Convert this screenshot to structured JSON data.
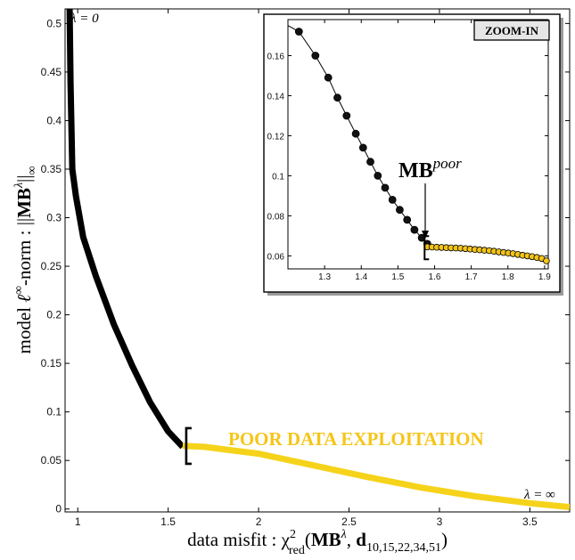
{
  "chart_data": [
    {
      "type": "line",
      "title": "",
      "xlabel": "data misfit : χ²red(MBλ, d10,15,22,34,51)",
      "xlabel_parts": {
        "prefix": "data misfit :  χ",
        "sup": "2",
        "sub": "red",
        "open": "(",
        "mb": "MB",
        "lambda": "λ",
        "sep": ", ",
        "d": "d",
        "dsub": "10,15,22,34,51",
        "close": ")"
      },
      "ylabel": "model ℓ∞-norm : ‖MBλ‖∞",
      "ylabel_parts": {
        "prefix": "model ",
        "ell": "ℓ",
        "inf": "∞",
        "mid": "-norm :  ||",
        "mb": "MB",
        "lambda": "λ",
        "close": "||",
        "sub": "∞"
      },
      "xlim": [
        0.93,
        3.72
      ],
      "ylim": [
        -0.003,
        0.515
      ],
      "xticks": [
        1,
        1.5,
        2,
        2.5,
        3,
        3.5
      ],
      "xtick_labels": [
        "1",
        "1.5",
        "2",
        "2.5",
        "3",
        "3.5"
      ],
      "yticks": [
        0,
        0.05,
        0.1,
        0.15,
        0.2,
        0.25,
        0.3,
        0.35,
        0.4,
        0.45,
        0.5
      ],
      "ytick_labels": [
        "0",
        "0.05",
        "0.1",
        "0.15",
        "0.2",
        "0.25",
        "0.3",
        "0.35",
        "0.4",
        "0.45",
        "0.5"
      ],
      "grid": false,
      "series": [
        {
          "color": "#000000",
          "x": [
            0.955,
            0.96,
            0.97,
            0.99,
            1.03,
            1.1,
            1.2,
            1.3,
            1.4,
            1.5,
            1.58
          ],
          "y": [
            0.515,
            0.44,
            0.35,
            0.322,
            0.28,
            0.24,
            0.19,
            0.148,
            0.11,
            0.08,
            0.064
          ]
        },
        {
          "color": "#f5d31a",
          "x": [
            1.58,
            1.7,
            2.0,
            2.3,
            2.6,
            2.9,
            3.2,
            3.5,
            3.72
          ],
          "y": [
            0.065,
            0.064,
            0.057,
            0.045,
            0.033,
            0.022,
            0.013,
            0.006,
            0.002
          ]
        }
      ],
      "bracket_at": {
        "x": 1.6,
        "y": 0.064
      },
      "annotations": {
        "lambda_zero": "λ = 0",
        "lambda_inf": "λ = ∞",
        "poor": "POOR DATA EXPLOITATION"
      },
      "colors": {
        "good_curve": "#000000",
        "poor_curve": "#f5d31a",
        "poor_text": "#f5c518"
      }
    },
    {
      "type": "scatter",
      "title": "ZOOM-IN",
      "xlim": [
        1.2,
        1.91
      ],
      "ylim": [
        0.0535,
        0.178
      ],
      "xticks": [
        1.3,
        1.4,
        1.5,
        1.6,
        1.7,
        1.8,
        1.9
      ],
      "xtick_labels": [
        "1.3",
        "1.4",
        "1.5",
        "1.6",
        "1.7",
        "1.8",
        "1.9"
      ],
      "yticks": [
        0.06,
        0.08,
        0.1,
        0.12,
        0.14,
        0.16
      ],
      "ytick_labels": [
        "0.06",
        "0.08",
        "0.1",
        "0.12",
        "0.14",
        "0.16"
      ],
      "series": [
        {
          "marker_color": "#111111",
          "x": [
            1.2,
            1.23,
            1.275,
            1.31,
            1.335,
            1.36,
            1.385,
            1.405,
            1.425,
            1.445,
            1.465,
            1.485,
            1.505,
            1.525,
            1.545,
            1.565,
            1.58
          ],
          "y": [
            0.175,
            0.172,
            0.16,
            0.149,
            0.139,
            0.13,
            0.121,
            0.114,
            0.107,
            0.1,
            0.094,
            0.088,
            0.083,
            0.078,
            0.073,
            0.069,
            0.066
          ]
        },
        {
          "marker_color": "#f2c418",
          "x": [
            1.58,
            1.593,
            1.606,
            1.619,
            1.632,
            1.645,
            1.658,
            1.671,
            1.684,
            1.697,
            1.71,
            1.723,
            1.736,
            1.749,
            1.762,
            1.775,
            1.788,
            1.801,
            1.814,
            1.827,
            1.84,
            1.853,
            1.866,
            1.879,
            1.892,
            1.905
          ],
          "y": [
            0.0645,
            0.0644,
            0.0643,
            0.0642,
            0.0641,
            0.064,
            0.0639,
            0.0638,
            0.0636,
            0.0634,
            0.0632,
            0.063,
            0.0628,
            0.0626,
            0.0623,
            0.062,
            0.0617,
            0.0614,
            0.0611,
            0.0607,
            0.0603,
            0.06,
            0.0596,
            0.0592,
            0.0587,
            0.0575
          ]
        }
      ],
      "bracket_at": {
        "x": 1.58,
        "y": 0.0645
      },
      "label": {
        "main": "MB",
        "sup": "poor"
      }
    }
  ]
}
